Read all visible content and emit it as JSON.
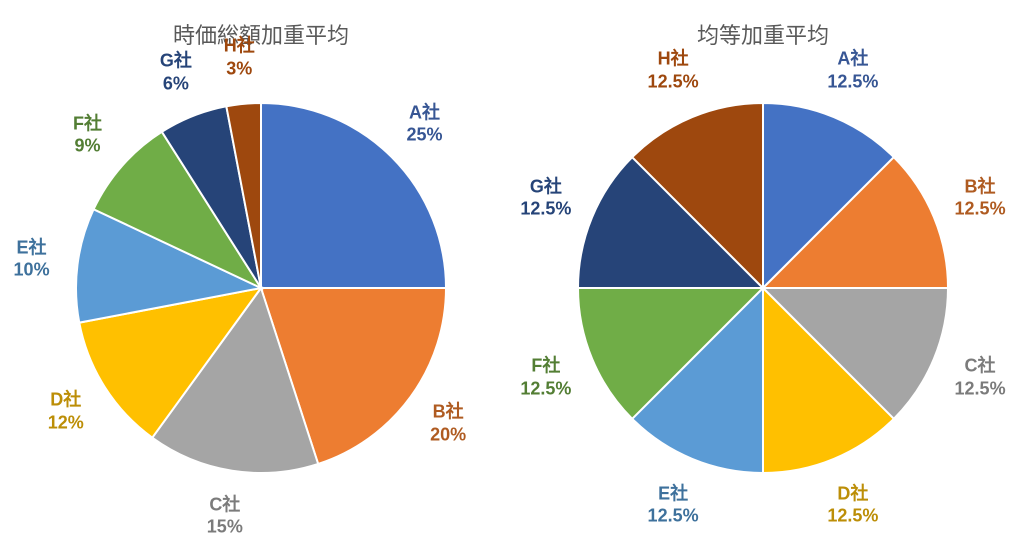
{
  "background_color": "#ffffff",
  "charts": [
    {
      "id": "market-cap-weighted",
      "title": "時価総額加重平均",
      "type": "pie",
      "radius": 185,
      "start_angle_deg": 0,
      "title_fontsize": 22,
      "title_color": "#595959",
      "label_fontsize": 18,
      "label_radius_factor": 1.25,
      "stroke_color": "#ffffff",
      "stroke_width": 2,
      "slices": [
        {
          "name": "A社",
          "value": 25,
          "percent_text": "25%",
          "color": "#4472c4",
          "label_color": "#375694"
        },
        {
          "name": "B社",
          "value": 20,
          "percent_text": "20%",
          "color": "#ed7d31",
          "label_color": "#af5b21"
        },
        {
          "name": "C社",
          "value": 15,
          "percent_text": "15%",
          "color": "#a5a5a5",
          "label_color": "#7b7b7b"
        },
        {
          "name": "D社",
          "value": 12,
          "percent_text": "12%",
          "color": "#ffc000",
          "label_color": "#bc8e07"
        },
        {
          "name": "E社",
          "value": 10,
          "percent_text": "10%",
          "color": "#5b9bd5",
          "label_color": "#3e719c"
        },
        {
          "name": "F社",
          "value": 9,
          "percent_text": "9%",
          "color": "#70ad47",
          "label_color": "#537e34"
        },
        {
          "name": "G社",
          "value": 6,
          "percent_text": "6%",
          "color": "#264478",
          "label_color": "#264478"
        },
        {
          "name": "H社",
          "value": 3,
          "percent_text": "3%",
          "color": "#9e480e",
          "label_color": "#9e480e"
        }
      ]
    },
    {
      "id": "equal-weighted",
      "title": "均等加重平均",
      "type": "pie",
      "radius": 185,
      "start_angle_deg": 0,
      "title_fontsize": 22,
      "title_color": "#595959",
      "label_fontsize": 18,
      "label_radius_factor": 1.27,
      "stroke_color": "#ffffff",
      "stroke_width": 2,
      "slices": [
        {
          "name": "A社",
          "value": 12.5,
          "percent_text": "12.5%",
          "color": "#4472c4",
          "label_color": "#375694"
        },
        {
          "name": "B社",
          "value": 12.5,
          "percent_text": "12.5%",
          "color": "#ed7d31",
          "label_color": "#af5b21"
        },
        {
          "name": "C社",
          "value": 12.5,
          "percent_text": "12.5%",
          "color": "#a5a5a5",
          "label_color": "#7b7b7b"
        },
        {
          "name": "D社",
          "value": 12.5,
          "percent_text": "12.5%",
          "color": "#ffc000",
          "label_color": "#bc8e07"
        },
        {
          "name": "E社",
          "value": 12.5,
          "percent_text": "12.5%",
          "color": "#5b9bd5",
          "label_color": "#3e719c"
        },
        {
          "name": "F社",
          "value": 12.5,
          "percent_text": "12.5%",
          "color": "#70ad47",
          "label_color": "#537e34"
        },
        {
          "name": "G社",
          "value": 12.5,
          "percent_text": "12.5%",
          "color": "#264478",
          "label_color": "#264478"
        },
        {
          "name": "H社",
          "value": 12.5,
          "percent_text": "12.5%",
          "color": "#9e480e",
          "label_color": "#9e480e"
        }
      ]
    }
  ]
}
